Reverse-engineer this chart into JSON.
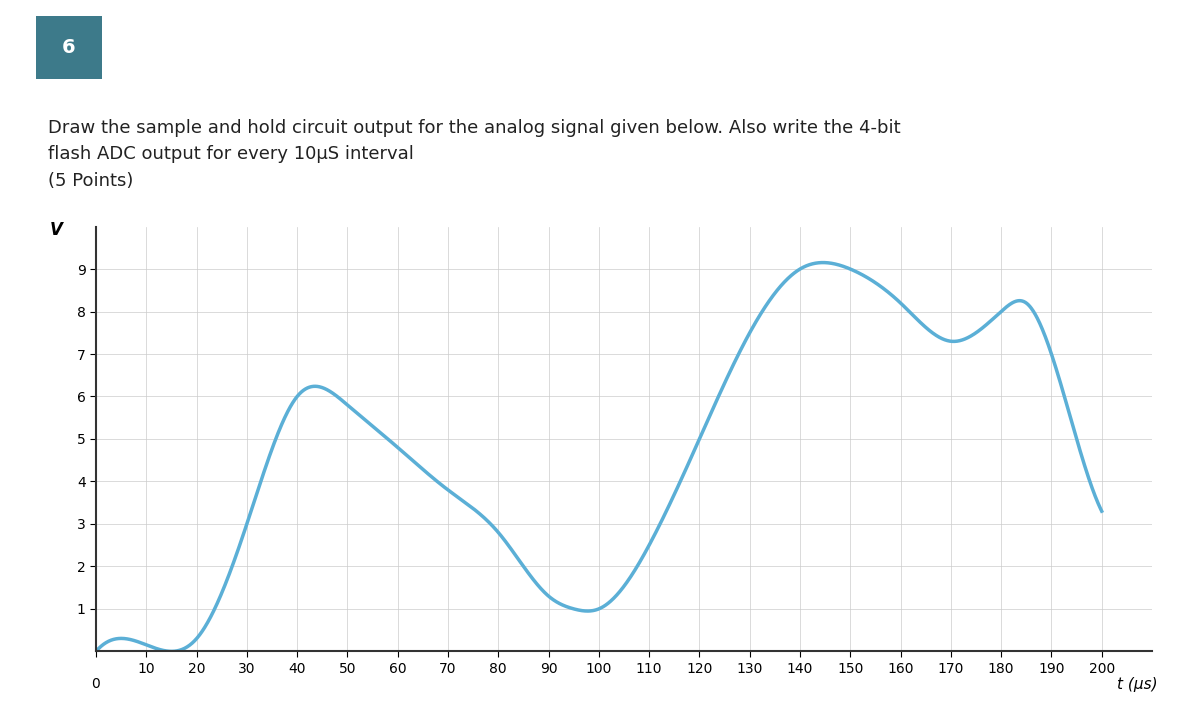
{
  "title_box_text": "6",
  "title_box_bg": "#3d7a8a",
  "title_box_fg": "#ffffff",
  "question_text": "Draw the sample and hold circuit output for the analog signal given below. Also write the 4-bit\nflash ADC output for every 10μS interval\n(5 Points)",
  "question_bg": "#e8f0f5",
  "curve_color": "#5bafd6",
  "curve_linewidth": 2.5,
  "xlabel": "t (μs)",
  "ylabel": "V",
  "xlim": [
    0,
    210
  ],
  "ylim": [
    0,
    10
  ],
  "xticks": [
    0,
    10,
    20,
    30,
    40,
    50,
    60,
    70,
    80,
    90,
    100,
    110,
    120,
    130,
    140,
    150,
    160,
    170,
    180,
    190,
    200
  ],
  "yticks": [
    1,
    2,
    3,
    4,
    5,
    6,
    7,
    8,
    9
  ],
  "grid_color": "#cccccc",
  "grid_linewidth": 0.5,
  "bg_color": "#ffffff",
  "control_points_t": [
    0,
    15,
    20,
    30,
    40,
    50,
    60,
    70,
    80,
    90,
    95,
    100,
    110,
    120,
    130,
    140,
    150,
    160,
    170,
    175,
    180,
    185,
    190,
    200
  ],
  "control_points_v": [
    0,
    0,
    0.3,
    3.0,
    6.0,
    5.8,
    4.8,
    3.8,
    2.8,
    1.3,
    1.0,
    1.0,
    2.5,
    5.0,
    7.5,
    9.0,
    9.0,
    8.2,
    7.3,
    7.5,
    8.0,
    8.2,
    7.0,
    3.3
  ]
}
